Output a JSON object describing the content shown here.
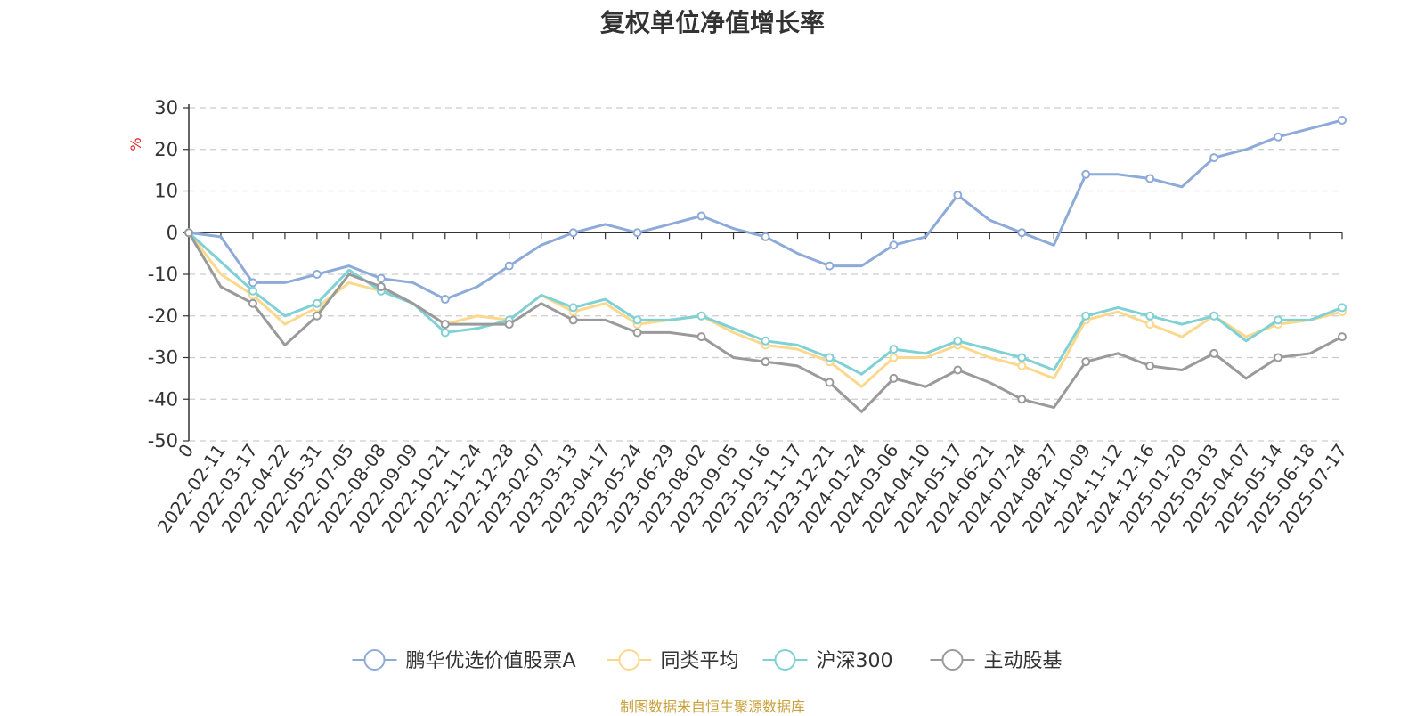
{
  "title": "复权单位净值增长率",
  "source": "制图数据来自恒生聚源数据库",
  "chart_data": {
    "type": "line",
    "title": "复权单位净值增长率",
    "ylabel": "%",
    "ylim": [
      -50,
      30
    ],
    "yticks": [
      30,
      20,
      10,
      0,
      -10,
      -20,
      -30,
      -40,
      -50
    ],
    "grid": true,
    "legend_position": "bottom-center",
    "x_ticks": [
      "0",
      "2022-02-11",
      "2022-03-17",
      "2022-04-22",
      "2022-05-31",
      "2022-07-05",
      "2022-08-08",
      "2022-09-09",
      "2022-10-21",
      "2022-11-24",
      "2022-12-28",
      "2023-02-07",
      "2023-03-13",
      "2023-04-17",
      "2023-05-24",
      "2023-06-29",
      "2023-08-02",
      "2023-09-05",
      "2023-10-16",
      "2023-11-17",
      "2023-12-21",
      "2024-01-24",
      "2024-03-06",
      "2024-04-10",
      "2024-05-17",
      "2024-06-21",
      "2024-07-24",
      "2024-08-27",
      "2024-10-09",
      "2024-11-12",
      "2024-12-16",
      "2025-01-20",
      "2025-03-03",
      "2025-04-07",
      "2025-05-14",
      "2025-06-18",
      "2025-07-17"
    ],
    "series": [
      {
        "name": "鹏华优选价值股票A",
        "color": "#8eaad8",
        "values": [
          0,
          -1,
          -12,
          -12,
          -10,
          -8,
          -11,
          -12,
          -16,
          -13,
          -8,
          -3,
          0,
          2,
          0,
          2,
          4,
          1,
          -1,
          -5,
          -8,
          -8,
          -3,
          -1,
          9,
          3,
          0,
          -3,
          14,
          14,
          13,
          11,
          18,
          20,
          23,
          25,
          27
        ]
      },
      {
        "name": "同类平均",
        "color": "#fcd88c",
        "values": [
          0,
          -10,
          -15,
          -22,
          -18,
          -12,
          -14,
          -17,
          -22,
          -20,
          -21,
          -15,
          -19,
          -17,
          -22,
          -21,
          -20,
          -24,
          -27,
          -28,
          -31,
          -37,
          -30,
          -30,
          -27,
          -30,
          -32,
          -35,
          -21,
          -19,
          -22,
          -25,
          -20,
          -25,
          -22,
          -21,
          -19
        ]
      },
      {
        "name": "沪深300",
        "color": "#7fd1d5",
        "values": [
          0,
          -7,
          -14,
          -20,
          -17,
          -9,
          -14,
          -17,
          -24,
          -23,
          -21,
          -15,
          -18,
          -16,
          -21,
          -21,
          -20,
          -23,
          -26,
          -27,
          -30,
          -34,
          -28,
          -29,
          -26,
          -28,
          -30,
          -33,
          -20,
          -18,
          -20,
          -22,
          -20,
          -26,
          -21,
          -21,
          -18
        ]
      },
      {
        "name": "主动股基",
        "color": "#9a9a9a",
        "values": [
          0,
          -13,
          -17,
          -27,
          -20,
          -10,
          -13,
          -17,
          -22,
          -22,
          -22,
          -17,
          -21,
          -21,
          -24,
          -24,
          -25,
          -30,
          -31,
          -32,
          -36,
          -43,
          -35,
          -37,
          -33,
          -36,
          -40,
          -42,
          -31,
          -29,
          -32,
          -33,
          -29,
          -35,
          -30,
          -29,
          -25
        ]
      }
    ]
  }
}
